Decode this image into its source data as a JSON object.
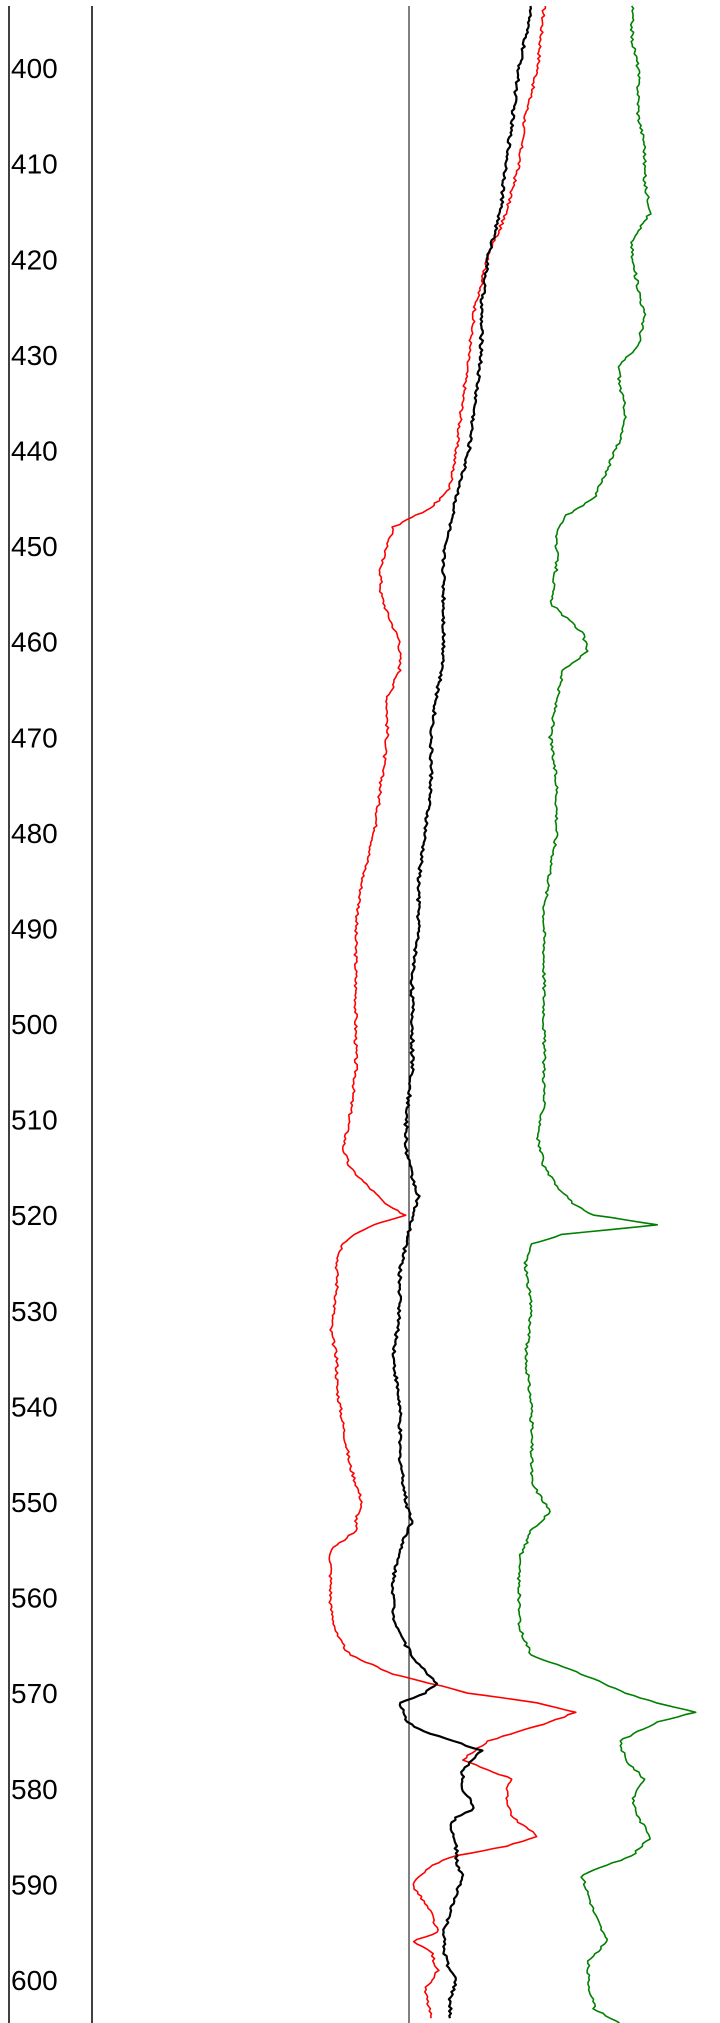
{
  "chart_data": {
    "type": "line",
    "title": "",
    "xlabel": "",
    "ylabel": "",
    "orientation": "vertical-depth",
    "y_axis": {
      "label": "",
      "range": [
        393.5,
        604.5
      ],
      "inverted": true,
      "ticks": [
        "400",
        "410",
        "420",
        "430",
        "440",
        "450",
        "460",
        "470",
        "480",
        "490",
        "500",
        "510",
        "520",
        "530",
        "540",
        "550",
        "560",
        "570",
        "580",
        "590",
        "600"
      ]
    },
    "grid": false,
    "legend": "none",
    "colors": {
      "red": "#ff0000",
      "black": "#000000",
      "green": "#008000",
      "axis": "#000000"
    },
    "series": [
      {
        "color": "#ff0000",
        "points": [
          [
            393.5,
            0.72
          ],
          [
            400,
            0.71
          ],
          [
            405,
            0.69
          ],
          [
            410,
            0.68
          ],
          [
            415,
            0.66
          ],
          [
            420,
            0.63
          ],
          [
            425,
            0.61
          ],
          [
            430,
            0.6
          ],
          [
            435,
            0.59
          ],
          [
            440,
            0.58
          ],
          [
            444,
            0.57
          ],
          [
            446,
            0.54
          ],
          [
            448,
            0.48
          ],
          [
            450,
            0.47
          ],
          [
            452,
            0.46
          ],
          [
            455,
            0.46
          ],
          [
            457,
            0.47
          ],
          [
            460,
            0.49
          ],
          [
            463,
            0.49
          ],
          [
            466,
            0.47
          ],
          [
            470,
            0.47
          ],
          [
            475,
            0.46
          ],
          [
            480,
            0.45
          ],
          [
            485,
            0.43
          ],
          [
            490,
            0.42
          ],
          [
            495,
            0.42
          ],
          [
            500,
            0.42
          ],
          [
            505,
            0.42
          ],
          [
            510,
            0.41
          ],
          [
            513,
            0.4
          ],
          [
            515,
            0.41
          ],
          [
            517,
            0.44
          ],
          [
            519,
            0.47
          ],
          [
            520,
            0.5
          ],
          [
            521,
            0.45
          ],
          [
            522,
            0.42
          ],
          [
            523,
            0.4
          ],
          [
            525,
            0.39
          ],
          [
            528,
            0.39
          ],
          [
            532,
            0.38
          ],
          [
            535,
            0.39
          ],
          [
            538,
            0.39
          ],
          [
            542,
            0.4
          ],
          [
            546,
            0.41
          ],
          [
            548,
            0.42
          ],
          [
            550,
            0.43
          ],
          [
            552,
            0.42
          ],
          [
            553,
            0.42
          ],
          [
            555,
            0.38
          ],
          [
            558,
            0.38
          ],
          [
            561,
            0.38
          ],
          [
            564,
            0.39
          ],
          [
            566,
            0.41
          ],
          [
            568,
            0.48
          ],
          [
            570,
            0.6
          ],
          [
            571,
            0.71
          ],
          [
            572,
            0.77
          ],
          [
            573,
            0.73
          ],
          [
            575,
            0.63
          ],
          [
            577,
            0.59
          ],
          [
            579,
            0.67
          ],
          [
            580,
            0.66
          ],
          [
            581,
            0.66
          ],
          [
            583,
            0.67
          ],
          [
            584,
            0.69
          ],
          [
            585,
            0.71
          ],
          [
            586,
            0.66
          ],
          [
            587,
            0.58
          ],
          [
            588,
            0.54
          ],
          [
            590,
            0.51
          ],
          [
            591,
            0.52
          ],
          [
            593,
            0.54
          ],
          [
            595,
            0.55
          ],
          [
            596,
            0.51
          ],
          [
            597,
            0.54
          ],
          [
            599,
            0.55
          ],
          [
            601,
            0.53
          ],
          [
            604,
            0.54
          ]
        ]
      },
      {
        "color": "#000000",
        "points": [
          [
            393.5,
            0.7
          ],
          [
            400,
            0.68
          ],
          [
            405,
            0.67
          ],
          [
            410,
            0.66
          ],
          [
            415,
            0.65
          ],
          [
            420,
            0.63
          ],
          [
            425,
            0.62
          ],
          [
            430,
            0.62
          ],
          [
            435,
            0.61
          ],
          [
            440,
            0.6
          ],
          [
            445,
            0.58
          ],
          [
            448,
            0.57
          ],
          [
            450,
            0.56
          ],
          [
            455,
            0.56
          ],
          [
            460,
            0.56
          ],
          [
            462,
            0.56
          ],
          [
            465,
            0.55
          ],
          [
            470,
            0.54
          ],
          [
            475,
            0.54
          ],
          [
            480,
            0.53
          ],
          [
            485,
            0.52
          ],
          [
            490,
            0.52
          ],
          [
            495,
            0.51
          ],
          [
            500,
            0.51
          ],
          [
            505,
            0.51
          ],
          [
            510,
            0.5
          ],
          [
            513,
            0.5
          ],
          [
            516,
            0.51
          ],
          [
            518,
            0.52
          ],
          [
            520,
            0.51
          ],
          [
            523,
            0.5
          ],
          [
            526,
            0.49
          ],
          [
            530,
            0.49
          ],
          [
            535,
            0.48
          ],
          [
            540,
            0.49
          ],
          [
            545,
            0.49
          ],
          [
            550,
            0.5
          ],
          [
            552,
            0.51
          ],
          [
            555,
            0.49
          ],
          [
            558,
            0.48
          ],
          [
            562,
            0.48
          ],
          [
            565,
            0.5
          ],
          [
            567,
            0.52
          ],
          [
            569,
            0.55
          ],
          [
            570,
            0.53
          ],
          [
            571,
            0.49
          ],
          [
            573,
            0.5
          ],
          [
            574,
            0.53
          ],
          [
            576,
            0.62
          ],
          [
            578,
            0.59
          ],
          [
            580,
            0.59
          ],
          [
            582,
            0.61
          ],
          [
            583,
            0.58
          ],
          [
            584,
            0.57
          ],
          [
            586,
            0.58
          ],
          [
            588,
            0.58
          ],
          [
            589,
            0.59
          ],
          [
            591,
            0.58
          ],
          [
            593,
            0.57
          ],
          [
            595,
            0.56
          ],
          [
            597,
            0.56
          ],
          [
            599,
            0.57
          ],
          [
            600,
            0.58
          ],
          [
            602,
            0.57
          ],
          [
            604,
            0.57
          ]
        ]
      },
      {
        "color": "#008000",
        "points": [
          [
            393.5,
            0.86
          ],
          [
            397,
            0.86
          ],
          [
            400,
            0.87
          ],
          [
            405,
            0.87
          ],
          [
            408,
            0.88
          ],
          [
            412,
            0.88
          ],
          [
            415,
            0.89
          ],
          [
            418,
            0.86
          ],
          [
            420,
            0.86
          ],
          [
            423,
            0.87
          ],
          [
            426,
            0.88
          ],
          [
            429,
            0.87
          ],
          [
            431,
            0.84
          ],
          [
            433,
            0.84
          ],
          [
            436,
            0.85
          ],
          [
            439,
            0.84
          ],
          [
            442,
            0.82
          ],
          [
            445,
            0.8
          ],
          [
            447,
            0.75
          ],
          [
            449,
            0.74
          ],
          [
            452,
            0.74
          ],
          [
            456,
            0.73
          ],
          [
            459,
            0.78
          ],
          [
            461,
            0.79
          ],
          [
            463,
            0.75
          ],
          [
            466,
            0.74
          ],
          [
            470,
            0.73
          ],
          [
            475,
            0.74
          ],
          [
            480,
            0.74
          ],
          [
            484,
            0.73
          ],
          [
            488,
            0.72
          ],
          [
            492,
            0.72
          ],
          [
            496,
            0.72
          ],
          [
            500,
            0.72
          ],
          [
            504,
            0.72
          ],
          [
            508,
            0.72
          ],
          [
            512,
            0.71
          ],
          [
            515,
            0.72
          ],
          [
            517,
            0.74
          ],
          [
            519,
            0.77
          ],
          [
            520,
            0.8
          ],
          [
            521,
            0.9
          ],
          [
            522,
            0.75
          ],
          [
            523,
            0.7
          ],
          [
            525,
            0.69
          ],
          [
            530,
            0.7
          ],
          [
            535,
            0.69
          ],
          [
            540,
            0.7
          ],
          [
            545,
            0.7
          ],
          [
            548,
            0.7
          ],
          [
            551,
            0.73
          ],
          [
            553,
            0.7
          ],
          [
            556,
            0.68
          ],
          [
            560,
            0.68
          ],
          [
            563,
            0.68
          ],
          [
            566,
            0.7
          ],
          [
            568,
            0.78
          ],
          [
            570,
            0.85
          ],
          [
            571,
            0.9
          ],
          [
            572,
            0.96
          ],
          [
            573,
            0.9
          ],
          [
            575,
            0.84
          ],
          [
            577,
            0.85
          ],
          [
            579,
            0.88
          ],
          [
            581,
            0.86
          ],
          [
            583,
            0.87
          ],
          [
            585,
            0.89
          ],
          [
            587,
            0.86
          ],
          [
            589,
            0.78
          ],
          [
            591,
            0.79
          ],
          [
            593,
            0.8
          ],
          [
            596,
            0.82
          ],
          [
            598,
            0.79
          ],
          [
            600,
            0.79
          ],
          [
            603,
            0.8
          ],
          [
            604.5,
            0.84
          ]
        ]
      }
    ]
  }
}
